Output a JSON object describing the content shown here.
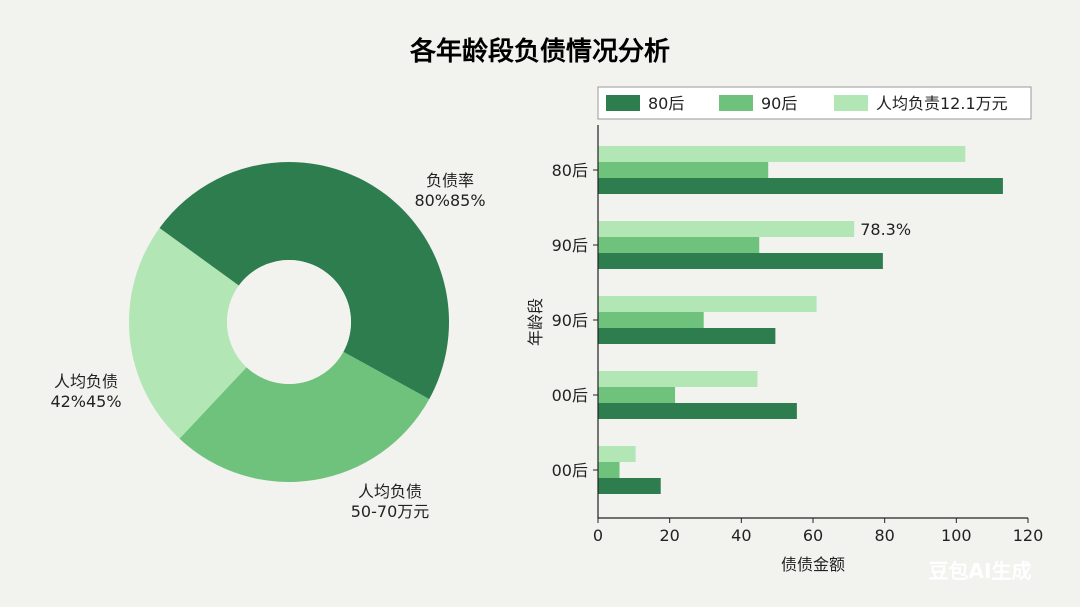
{
  "title": "各年龄段负债情况分析",
  "watermark": "豆包AI生成",
  "colors": {
    "dark": "#2e7d4f",
    "mid": "#6ec27c",
    "light": "#b3e6b5",
    "background": "#f2f2ef"
  },
  "chart_data": [
    {
      "type": "pie",
      "donut": true,
      "slices": [
        {
          "value": 33,
          "color": "#2e7d4f",
          "label": "负债率",
          "sublabel": "80%85%"
        },
        {
          "value": 29,
          "color": "#6ec27c",
          "label": "人均负债",
          "sublabel": "50-70万元"
        },
        {
          "value": 23,
          "color": "#b3e6b5",
          "label": "人均负债",
          "sublabel": "42%45%"
        },
        {
          "value": 15,
          "color": "#2e7d4f",
          "label": "",
          "sublabel": ""
        }
      ]
    },
    {
      "type": "bar",
      "orientation": "horizontal",
      "categories": [
        "80后",
        "90后",
        "90后",
        "00后",
        "00后"
      ],
      "series": [
        {
          "name": "80后",
          "color": "#2e7d4f",
          "values": [
            113,
            79.5,
            49.5,
            55.5,
            17.5
          ]
        },
        {
          "name": "90后",
          "color": "#6ec27c",
          "values": [
            47.5,
            45,
            29.5,
            21.5,
            6
          ]
        },
        {
          "name": "人均负责12.1万元",
          "color": "#b3e6b5",
          "values": [
            102.5,
            71.5,
            61,
            44.5,
            10.5
          ]
        }
      ],
      "annotation": {
        "text": "78.3%",
        "category_index": 1
      },
      "xlabel": "债债金额",
      "ylabel": "年龄段",
      "xlim": [
        0,
        120
      ],
      "xticks": [
        "0",
        "20",
        "40",
        "60",
        "80",
        "100",
        "120"
      ],
      "legend": "top"
    }
  ]
}
